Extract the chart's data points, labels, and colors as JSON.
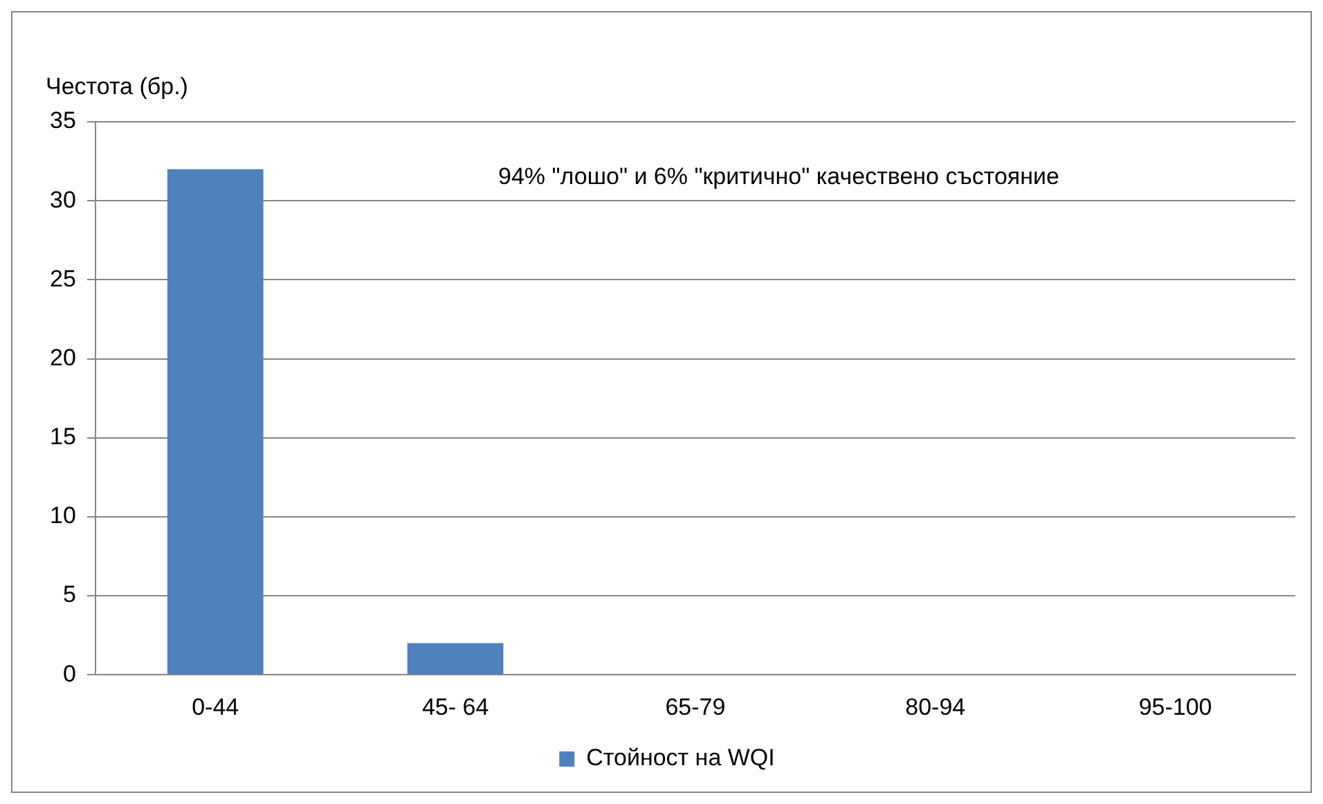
{
  "chart_data": {
    "type": "bar",
    "ylabel": "Честота (бр.)",
    "annotations": [
      "94% \"лошо\" и 6% \"критично\" качествено състояние"
    ],
    "categories": [
      "0-44",
      "45- 64",
      "65-79",
      "80-94",
      "95-100"
    ],
    "series": [
      {
        "name": "Стойност на WQI",
        "color": "#4f81bd",
        "values": [
          32,
          2,
          0,
          0,
          0
        ]
      }
    ],
    "ylim": [
      0,
      35
    ],
    "yticks": [
      0,
      5,
      10,
      15,
      20,
      25,
      30,
      35
    ],
    "grid": "y",
    "legend": "bottom"
  }
}
